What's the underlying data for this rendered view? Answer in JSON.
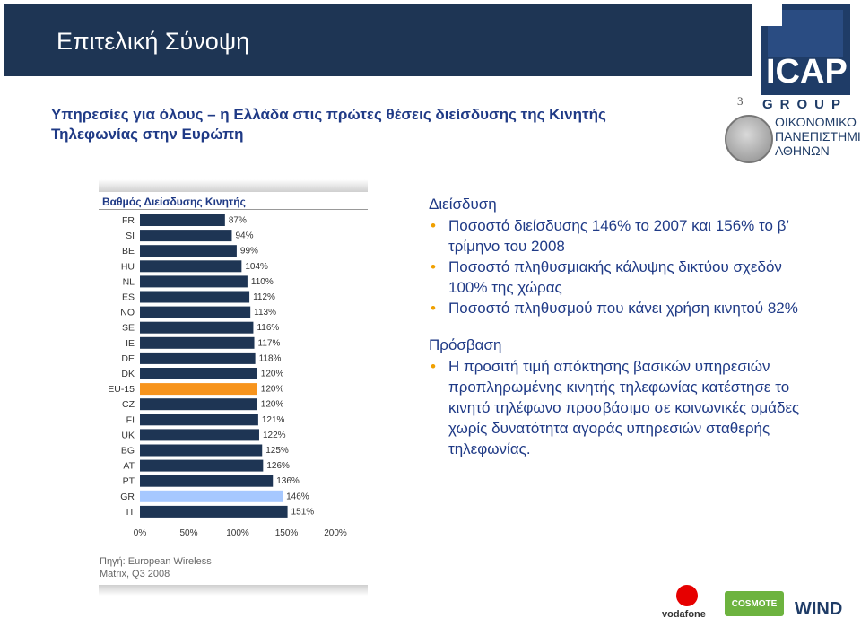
{
  "slide": {
    "title": "Επιτελική Σύνοψη",
    "page_number": "3",
    "subtitle_line1": "Υπηρεσίες για όλους –  η Ελλάδα στις πρώτες θέσεις διείσδυσης της Κινητής",
    "subtitle_line2": "Τηλεφωνίας στην Ευρώπη",
    "source_line1": "Πηγή: European Wireless",
    "source_line2": "Matrix, Q3 2008"
  },
  "logos": {
    "icap": "ICAP",
    "group": "GROUP",
    "university_line1": "ΟΙΚΟΝΟΜΙΚΟ",
    "university_line2": "ΠΑΝΕΠΙΣΤΗΜΙΟ",
    "university_line3": "ΑΘΗΝΩΝ",
    "vodafone": "vodafone",
    "cosmote": "COSMOTE",
    "wind": "WIND"
  },
  "chart_data": {
    "type": "bar",
    "orientation": "horizontal",
    "title": "Βαθμός Διείσδυσης Κινητής",
    "categories": [
      "FR",
      "SI",
      "BE",
      "HU",
      "NL",
      "ES",
      "NO",
      "SE",
      "IE",
      "DE",
      "DK",
      "EU-15",
      "CZ",
      "FI",
      "UK",
      "BG",
      "AT",
      "PT",
      "GR",
      "IT"
    ],
    "values": [
      87,
      94,
      99,
      104,
      110,
      112,
      113,
      116,
      117,
      118,
      120,
      120,
      120,
      121,
      122,
      125,
      126,
      136,
      146,
      151
    ],
    "value_labels": [
      "87%",
      "94%",
      "99%",
      "104%",
      "110%",
      "112%",
      "113%",
      "116%",
      "117%",
      "118%",
      "120%",
      "120%",
      "120%",
      "121%",
      "122%",
      "125%",
      "126%",
      "136%",
      "146%",
      "151%"
    ],
    "xlim": [
      0,
      200
    ],
    "x_ticks": [
      "0%",
      "50%",
      "100%",
      "150%",
      "200%"
    ],
    "grid": false,
    "colors": {
      "default": "#1e3554",
      "EU-15": "#f7941d",
      "GR": "#a6c8ff"
    }
  },
  "right_panel": {
    "section1_heading": "Διείσδυση",
    "section1_items": [
      "Ποσοστό διείσδυσης 146% το 2007 και 156% το β’ τρίμηνο του 2008",
      "Ποσοστό πληθυσμιακής κάλυψης δικτύου σχεδόν 100% της χώρας",
      "Ποσοστό πληθυσμού που κάνει χρήση κινητού 82%"
    ],
    "section2_heading": "Πρόσβαση",
    "section2_items": [
      "Η προσιτή τιμή απόκτησης βασικών υπηρεσιών προπληρωμένης κινητής τηλεφωνίας κατέστησε το κινητό τηλέφωνο προσβάσιμο σε κοινωνικές ομάδες χωρίς δυνατότητα αγοράς υπηρεσιών σταθερής τηλεφωνίας."
    ]
  }
}
